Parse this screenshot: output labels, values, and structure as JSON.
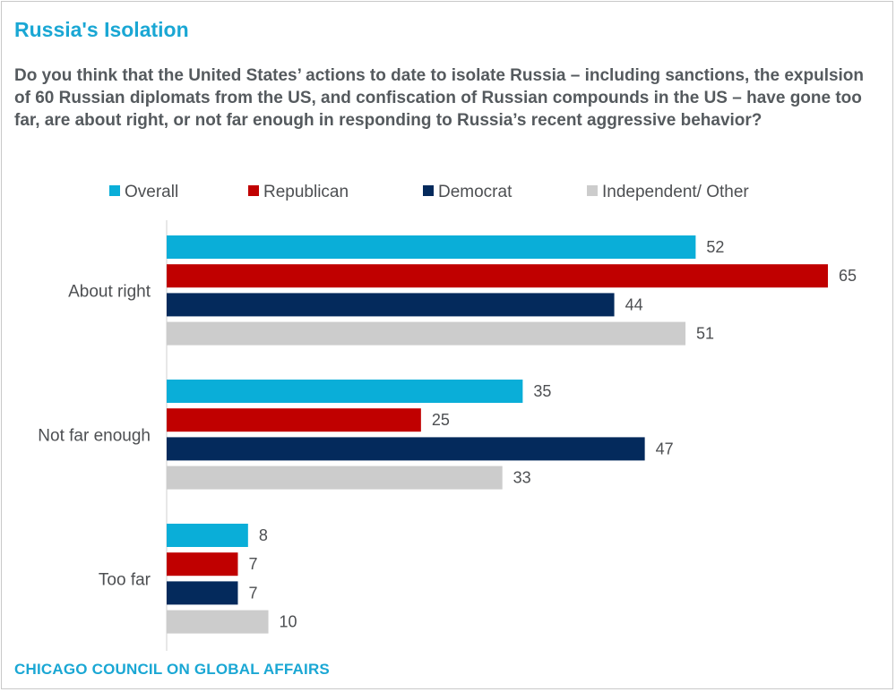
{
  "title": "Russia's Isolation",
  "question": "Do you think that the United States’ actions to date to isolate Russia – including sanctions, the expulsion of 60 Russian diplomats from the US, and confiscation of Russian compounds in the US – have gone too far, are about right, or not far enough in responding to Russia’s recent aggressive behavior?",
  "source": "CHICAGO COUNCIL ON GLOBAL AFFAIRS",
  "chart_data": {
    "type": "bar",
    "orientation": "horizontal",
    "categories": [
      "About right",
      "Not far enough",
      "Too far"
    ],
    "series": [
      {
        "name": "Overall",
        "color": "#0aaed8",
        "values": [
          52,
          35,
          8
        ]
      },
      {
        "name": "Republican",
        "color": "#c00000",
        "values": [
          65,
          25,
          7
        ]
      },
      {
        "name": "Democrat",
        "color": "#042a5c",
        "values": [
          44,
          47,
          7
        ]
      },
      {
        "name": "Independent/ Other",
        "color": "#cccccc",
        "values": [
          51,
          33,
          10
        ]
      }
    ],
    "xlim": [
      0,
      65
    ],
    "legend": "top",
    "grid": false,
    "data_labels": true
  }
}
